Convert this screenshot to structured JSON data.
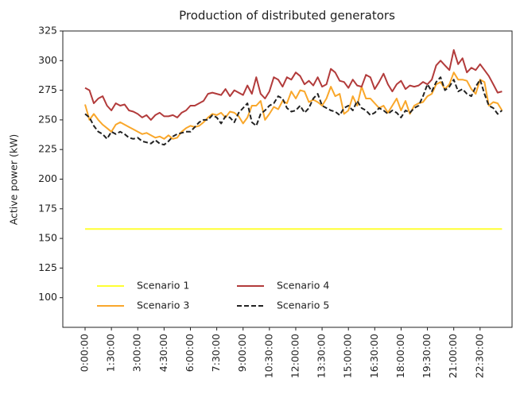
{
  "chart_data": {
    "type": "line",
    "title": "Production of distributed generators",
    "y_label": "Active power (kW)",
    "categories": [
      "0:00:00",
      null,
      null,
      null,
      null,
      null,
      "1:30:00",
      null,
      null,
      null,
      null,
      null,
      "3:00:00",
      null,
      null,
      null,
      null,
      null,
      "4:30:00",
      null,
      null,
      null,
      null,
      null,
      "6:00:00",
      null,
      null,
      null,
      null,
      null,
      "7:30:00",
      null,
      null,
      null,
      null,
      null,
      "9:00:00",
      null,
      null,
      null,
      null,
      null,
      "10:30:00",
      null,
      null,
      null,
      null,
      null,
      "12:00:00",
      null,
      null,
      null,
      null,
      null,
      "13:30:00",
      null,
      null,
      null,
      null,
      null,
      "15:00:00",
      null,
      null,
      null,
      null,
      null,
      "16:30:00",
      null,
      null,
      null,
      null,
      null,
      "18:00:00",
      null,
      null,
      null,
      null,
      null,
      "19:30:00",
      null,
      null,
      null,
      null,
      null,
      "21:00:00",
      null,
      null,
      null,
      null,
      null,
      "22:30:00",
      null,
      null,
      null,
      null,
      null
    ],
    "series": [
      {
        "name": "Scenario 1",
        "color": "#ffff33",
        "linestyle": "solid",
        "values": [
          158,
          158,
          158,
          158,
          158,
          158,
          158,
          158,
          158,
          158,
          158,
          158,
          158,
          158,
          158,
          158,
          158,
          158,
          158,
          158,
          158,
          158,
          158,
          158,
          158,
          158,
          158,
          158,
          158,
          158,
          158,
          158,
          158,
          158,
          158,
          158,
          158,
          158,
          158,
          158,
          158,
          158,
          158,
          158,
          158,
          158,
          158,
          158,
          158,
          158,
          158,
          158,
          158,
          158,
          158,
          158,
          158,
          158,
          158,
          158,
          158,
          158,
          158,
          158,
          158,
          158,
          158,
          158,
          158,
          158,
          158,
          158,
          158,
          158,
          158,
          158,
          158,
          158,
          158,
          158,
          158,
          158,
          158,
          158,
          158,
          158,
          158,
          158,
          158,
          158,
          158,
          158,
          158,
          158,
          158,
          158
        ]
      },
      {
        "name": "Scenario 3",
        "color": "#f9a72b",
        "linestyle": "solid",
        "values": [
          263,
          250,
          255,
          250,
          246,
          243,
          240,
          246,
          248,
          246,
          244,
          242,
          240,
          238,
          239,
          237,
          235,
          236,
          234,
          237,
          234,
          235,
          240,
          243,
          245,
          244,
          245,
          248,
          252,
          255,
          254,
          256,
          252,
          257,
          256,
          253,
          247,
          252,
          262,
          262,
          266,
          250,
          255,
          261,
          259,
          266,
          264,
          274,
          268,
          275,
          274,
          265,
          267,
          265,
          262,
          268,
          278,
          270,
          272,
          255,
          258,
          270,
          262,
          278,
          268,
          268,
          264,
          260,
          262,
          256,
          262,
          268,
          258,
          266,
          255,
          262,
          264,
          265,
          270,
          272,
          280,
          282,
          276,
          280,
          290,
          284,
          284,
          283,
          276,
          272,
          284,
          282,
          262,
          265,
          264,
          258
        ]
      },
      {
        "name": "Scenario 4",
        "color": "#b23b3b",
        "linestyle": "solid",
        "values": [
          277,
          275,
          264,
          268,
          270,
          262,
          258,
          264,
          262,
          263,
          258,
          257,
          255,
          252,
          254,
          250,
          254,
          256,
          253,
          253,
          254,
          252,
          256,
          258,
          262,
          262,
          264,
          266,
          272,
          273,
          272,
          271,
          276,
          270,
          275,
          273,
          271,
          279,
          272,
          286,
          272,
          268,
          274,
          286,
          284,
          278,
          286,
          284,
          290,
          287,
          280,
          283,
          279,
          286,
          278,
          280,
          293,
          290,
          283,
          282,
          277,
          284,
          279,
          278,
          288,
          286,
          276,
          282,
          289,
          280,
          274,
          280,
          283,
          276,
          279,
          278,
          279,
          282,
          280,
          284,
          296,
          300,
          296,
          292,
          309,
          297,
          302,
          290,
          294,
          292,
          297,
          292,
          287,
          280,
          273,
          274
        ]
      },
      {
        "name": "Scenario 5",
        "color": "#222222",
        "linestyle": "dashed",
        "values": [
          255,
          252,
          245,
          240,
          238,
          234,
          240,
          238,
          240,
          238,
          235,
          234,
          235,
          232,
          231,
          230,
          233,
          230,
          229,
          232,
          236,
          238,
          239,
          240,
          240,
          244,
          248,
          250,
          250,
          254,
          252,
          247,
          253,
          252,
          248,
          256,
          260,
          264,
          248,
          245,
          255,
          258,
          262,
          264,
          270,
          268,
          260,
          257,
          258,
          262,
          256,
          260,
          268,
          272,
          262,
          260,
          258,
          257,
          254,
          260,
          262,
          258,
          266,
          260,
          258,
          254,
          256,
          260,
          258,
          255,
          258,
          256,
          252,
          258,
          256,
          260,
          262,
          270,
          280,
          274,
          282,
          286,
          275,
          278,
          284,
          274,
          276,
          272,
          270,
          278,
          284,
          272,
          262,
          260,
          255,
          258
        ]
      }
    ],
    "ylim": [
      75,
      325
    ],
    "yticks": [
      100,
      125,
      150,
      175,
      200,
      225,
      250,
      275,
      300,
      325
    ],
    "grid": false,
    "legend": {
      "location": "lower left",
      "columns": 3
    }
  }
}
